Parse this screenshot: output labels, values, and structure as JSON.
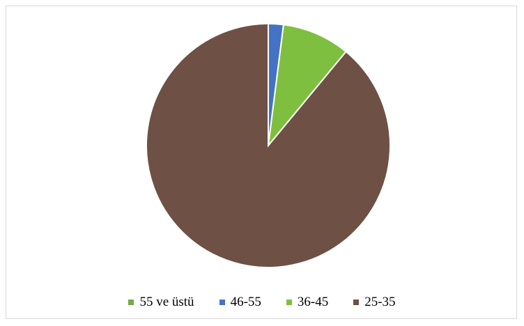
{
  "chart_data": {
    "type": "pie",
    "categories": [
      "55 ve üstü",
      "46-55",
      "36-45",
      "25-35"
    ],
    "values": [
      0,
      2,
      9,
      89
    ],
    "colors": [
      "#70ad47",
      "#4472c4",
      "#7fbf3f",
      "#6f5045"
    ],
    "legend_position": "bottom",
    "start_angle": "top",
    "direction": "clockwise"
  }
}
